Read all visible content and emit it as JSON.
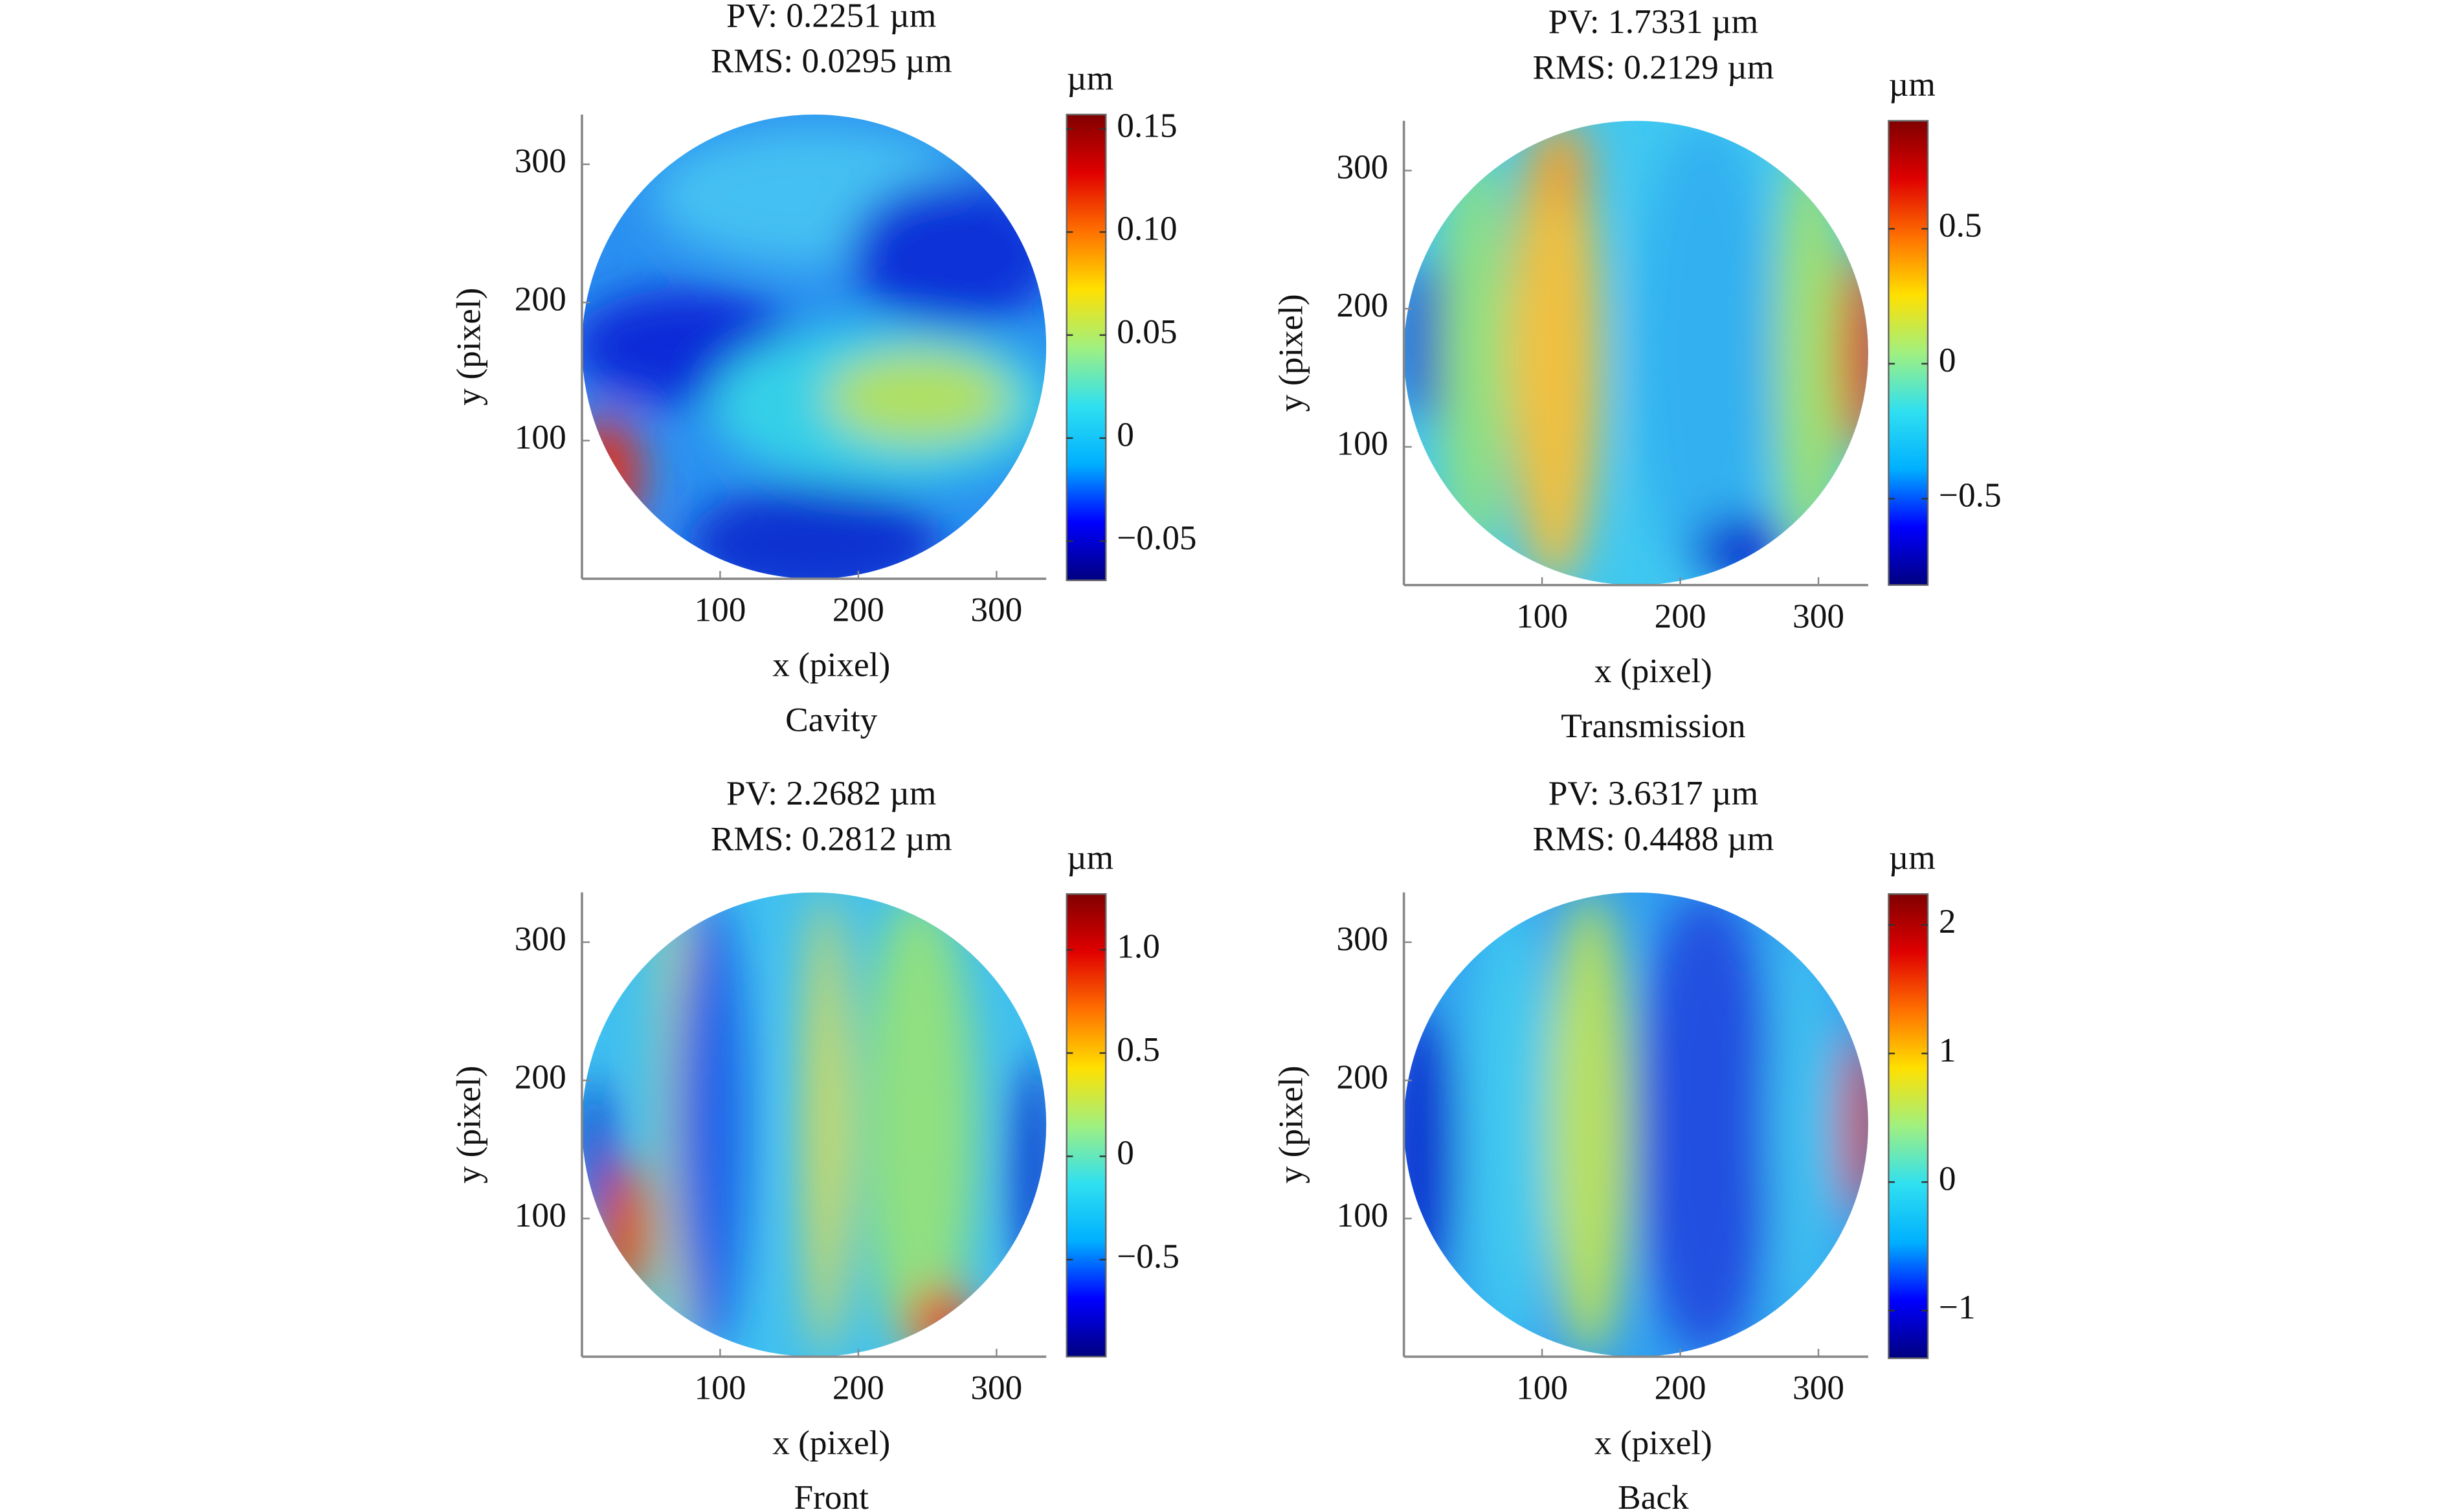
{
  "chart_data": [
    {
      "type": "heatmap",
      "title": "PV: 0.2251 µm",
      "subtitle": "RMS: 0.0295 µm",
      "caption": "Cavity",
      "xlabel": "x (pixel)",
      "ylabel": "y (pixel)",
      "xlim": [
        0,
        336
      ],
      "ylim": [
        0,
        336
      ],
      "xticks": [
        100,
        200,
        300
      ],
      "yticks": [
        100,
        200,
        300
      ],
      "colormap": "jet",
      "colorbar": {
        "label": "µm",
        "lim": [
          -0.069,
          0.157
        ],
        "ticks": [
          0.15,
          {
            "value": 0.1,
            "label": "0.10"
          },
          0.05,
          0,
          {
            "value": -0.05,
            "label": "−0.05"
          }
        ]
      }
    },
    {
      "type": "heatmap",
      "title": "PV: 1.7331 µm",
      "subtitle": "RMS: 0.2129 µm",
      "caption": "Transmission",
      "xlabel": "x (pixel)",
      "ylabel": "y (pixel)",
      "xlim": [
        0,
        336
      ],
      "ylim": [
        0,
        336
      ],
      "xticks": [
        100,
        200,
        300
      ],
      "yticks": [
        100,
        200,
        300
      ],
      "colormap": "jet",
      "colorbar": {
        "label": "µm",
        "lim": [
          -0.82,
          0.9
        ],
        "ticks": [
          0.5,
          0,
          {
            "value": -0.5,
            "label": "−0.5"
          }
        ]
      }
    },
    {
      "type": "heatmap",
      "title": "PV: 2.2682 µm",
      "subtitle": "RMS: 0.2812 µm",
      "caption": "Front",
      "xlabel": "x (pixel)",
      "ylabel": "y (pixel)",
      "xlim": [
        0,
        336
      ],
      "ylim": [
        0,
        336
      ],
      "xticks": [
        100,
        200,
        300
      ],
      "yticks": [
        100,
        200,
        300
      ],
      "colormap": "jet",
      "colorbar": {
        "label": "µm",
        "lim": [
          -0.97,
          1.27
        ],
        "ticks": [
          {
            "value": 1,
            "label": "1.0"
          },
          0.5,
          0,
          {
            "value": -0.5,
            "label": "−0.5"
          }
        ]
      }
    },
    {
      "type": "heatmap",
      "title": "PV: 3.6317 µm",
      "subtitle": "RMS: 0.4488 µm",
      "caption": "Back",
      "xlabel": "x (pixel)",
      "ylabel": "y (pixel)",
      "xlim": [
        0,
        336
      ],
      "ylim": [
        0,
        336
      ],
      "xticks": [
        100,
        200,
        300
      ],
      "yticks": [
        100,
        200,
        300
      ],
      "colormap": "jet",
      "colorbar": {
        "label": "µm",
        "lim": [
          -1.37,
          2.24
        ],
        "ticks": [
          2,
          1,
          0,
          {
            "value": -1,
            "label": "−1"
          }
        ]
      }
    }
  ]
}
